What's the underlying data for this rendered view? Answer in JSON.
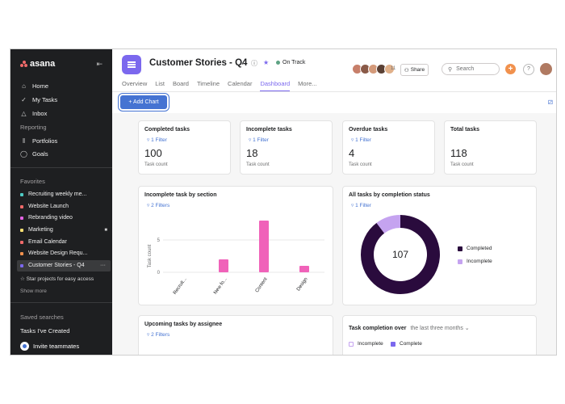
{
  "sidebar": {
    "logo": "asana",
    "nav": [
      {
        "label": "Home",
        "icon": "home-icon"
      },
      {
        "label": "My Tasks",
        "icon": "check-circle-icon"
      },
      {
        "label": "Inbox",
        "icon": "bell-icon"
      }
    ],
    "reporting_label": "Reporting",
    "reporting": [
      {
        "label": "Portfolios",
        "icon": "bar-chart-icon"
      },
      {
        "label": "Goals",
        "icon": "person-icon"
      }
    ],
    "favorites_label": "Favorites",
    "favorites": [
      {
        "label": "Recruiting weekly me...",
        "color": "#4ecbc4"
      },
      {
        "label": "Website Launch",
        "color": "#f06a6a"
      },
      {
        "label": "Rebranding video",
        "color": "#e362e3"
      },
      {
        "label": "Marketing",
        "color": "#f8df72"
      },
      {
        "label": "Email Calendar",
        "color": "#f06a6a"
      },
      {
        "label": "Website Design Requ...",
        "color": "#f1914d"
      },
      {
        "label": "Customer Stories - Q4",
        "color": "#7b68ee"
      }
    ],
    "star_projects": "☆ Star projects for easy access",
    "show_more": "Show more",
    "saved_searches_label": "Saved searches",
    "tasks_created": "Tasks I've Created",
    "invite": "Invite teammates"
  },
  "header": {
    "project_title": "Customer Stories - Q4",
    "status": "On Track",
    "tabs": [
      "Overview",
      "List",
      "Board",
      "Timeline",
      "Calendar",
      "Dashboard",
      "More..."
    ],
    "active_tab": "Dashboard",
    "member_count": "11",
    "share_label": "Share",
    "search_placeholder": "Search"
  },
  "toolbar": {
    "add_chart_label": "+ Add Chart"
  },
  "stats": [
    {
      "title": "Completed tasks",
      "filter": "1 Filter",
      "value": "100",
      "caption": "Task count"
    },
    {
      "title": "Incomplete tasks",
      "filter": "1 Filter",
      "value": "18",
      "caption": "Task count"
    },
    {
      "title": "Overdue tasks",
      "filter": "1 Filter",
      "value": "4",
      "caption": "Task count"
    },
    {
      "title": "Total tasks",
      "filter": "",
      "value": "118",
      "caption": "Task count"
    }
  ],
  "bar_card": {
    "title": "Incomplete task by section",
    "filter": "2 Filters"
  },
  "donut_card": {
    "title": "All tasks by completion status",
    "filter": "1 Filter",
    "center_value": "107"
  },
  "upcoming_card": {
    "title": "Upcoming tasks by assignee",
    "filter": "2 Filters"
  },
  "completion_card": {
    "title": "Task completion over",
    "range": "the last three months",
    "legend": [
      "Incomplete",
      "Complete"
    ]
  },
  "colors": {
    "accent": "#7b68ee",
    "blue": "#4573d2",
    "pink": "#f062b9",
    "dark": "#2a0b3d",
    "lilac": "#c5a3f0"
  },
  "chart_data": [
    {
      "type": "bar",
      "title": "Incomplete task by section",
      "categories": [
        "Recruit...",
        "New fo...",
        "Content",
        "Design"
      ],
      "values": [
        0,
        2,
        8,
        1
      ],
      "ylabel": "Task count",
      "yticks": [
        0,
        5
      ],
      "ylim": [
        0,
        9
      ],
      "grid": true
    },
    {
      "type": "pie",
      "title": "All tasks by completion status",
      "labels": [
        "Completed",
        "Incomplete"
      ],
      "values": [
        96,
        11
      ],
      "center_label": "107",
      "legend": "right"
    }
  ]
}
